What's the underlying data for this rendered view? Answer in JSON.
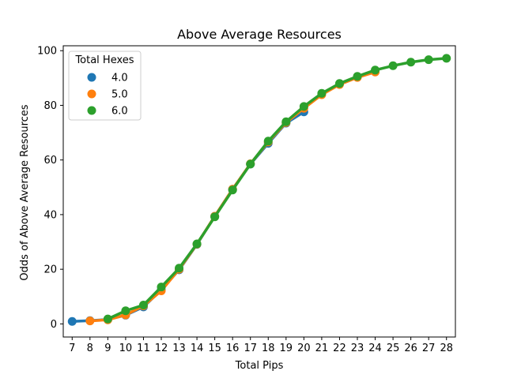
{
  "chart_data": {
    "type": "line",
    "title": "Above Average Resources",
    "xlabel": "Total Pips",
    "ylabel": "Odds of Above Average Resources",
    "categories": [
      7,
      8,
      9,
      10,
      11,
      12,
      13,
      14,
      15,
      16,
      17,
      18,
      19,
      20,
      21,
      22,
      23,
      24,
      25,
      26,
      27,
      28
    ],
    "ylim": [
      -4.8,
      101.8
    ],
    "yticks": [
      0,
      20,
      40,
      60,
      80,
      100
    ],
    "grid": false,
    "legend": {
      "title": "Total Hexes",
      "placement": "top-left"
    },
    "series": [
      {
        "name": "4.0",
        "color": "#1f77b4",
        "x": [
          7,
          8,
          9,
          10,
          11,
          12,
          13,
          14,
          15,
          16,
          17,
          18,
          19,
          20
        ],
        "values": [
          0.9,
          1.2,
          1.6,
          3.2,
          6.2,
          12.5,
          19.8,
          29.1,
          39.4,
          49.3,
          58.5,
          66.1,
          73.5,
          77.6
        ]
      },
      {
        "name": "5.0",
        "color": "#ff7f0e",
        "x": [
          8,
          9,
          10,
          11,
          12,
          13,
          14,
          15,
          16,
          17,
          18,
          19,
          20,
          21,
          22,
          23,
          24
        ],
        "values": [
          1.1,
          1.5,
          3.3,
          6.6,
          12.1,
          20.0,
          29.2,
          39.4,
          49.3,
          58.6,
          66.6,
          73.7,
          78.9,
          83.9,
          87.6,
          90.2,
          92.2
        ]
      },
      {
        "name": "6.0",
        "color": "#2ca02c",
        "x": [
          9,
          10,
          11,
          12,
          13,
          14,
          15,
          16,
          17,
          18,
          19,
          20,
          21,
          22,
          23,
          24,
          25,
          26,
          27,
          28
        ],
        "values": [
          1.8,
          4.8,
          6.9,
          13.5,
          20.4,
          29.3,
          39.2,
          49.0,
          58.5,
          66.9,
          74.0,
          79.6,
          84.4,
          88.0,
          90.6,
          92.9,
          94.5,
          95.8,
          96.7,
          97.2
        ]
      }
    ]
  }
}
